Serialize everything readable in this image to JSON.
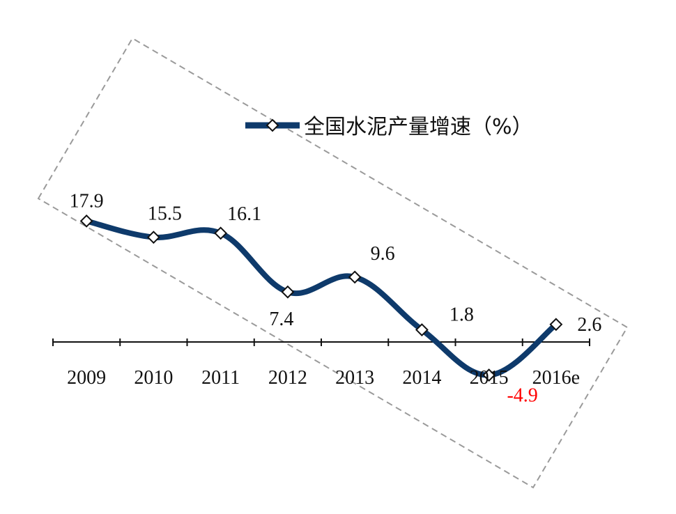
{
  "chart_data": {
    "type": "line",
    "title": "",
    "xlabel": "",
    "ylabel": "",
    "categories": [
      "2009",
      "2010",
      "2011",
      "2012",
      "2013",
      "2014",
      "2015",
      "2016e"
    ],
    "series": [
      {
        "name": "全国水泥产量增速（%）",
        "values": [
          17.9,
          15.5,
          16.1,
          7.4,
          9.6,
          1.8,
          -4.9,
          2.6
        ],
        "data_labels": [
          "17.9",
          "15.5",
          "16.1",
          "7.4",
          "9.6",
          "1.8",
          "-4.9",
          "2.6"
        ],
        "color": "#0e3a6b",
        "marker": "diamond-open"
      }
    ],
    "negative_label_color": "#ff0000",
    "ylim": [
      -6,
      20
    ],
    "grid": false,
    "legend_position": "top-right"
  },
  "colors": {
    "line": "#0e3a6b",
    "axis": "#111111",
    "negative_label": "#ff0000",
    "annotation_box": "#9a9a9a"
  }
}
